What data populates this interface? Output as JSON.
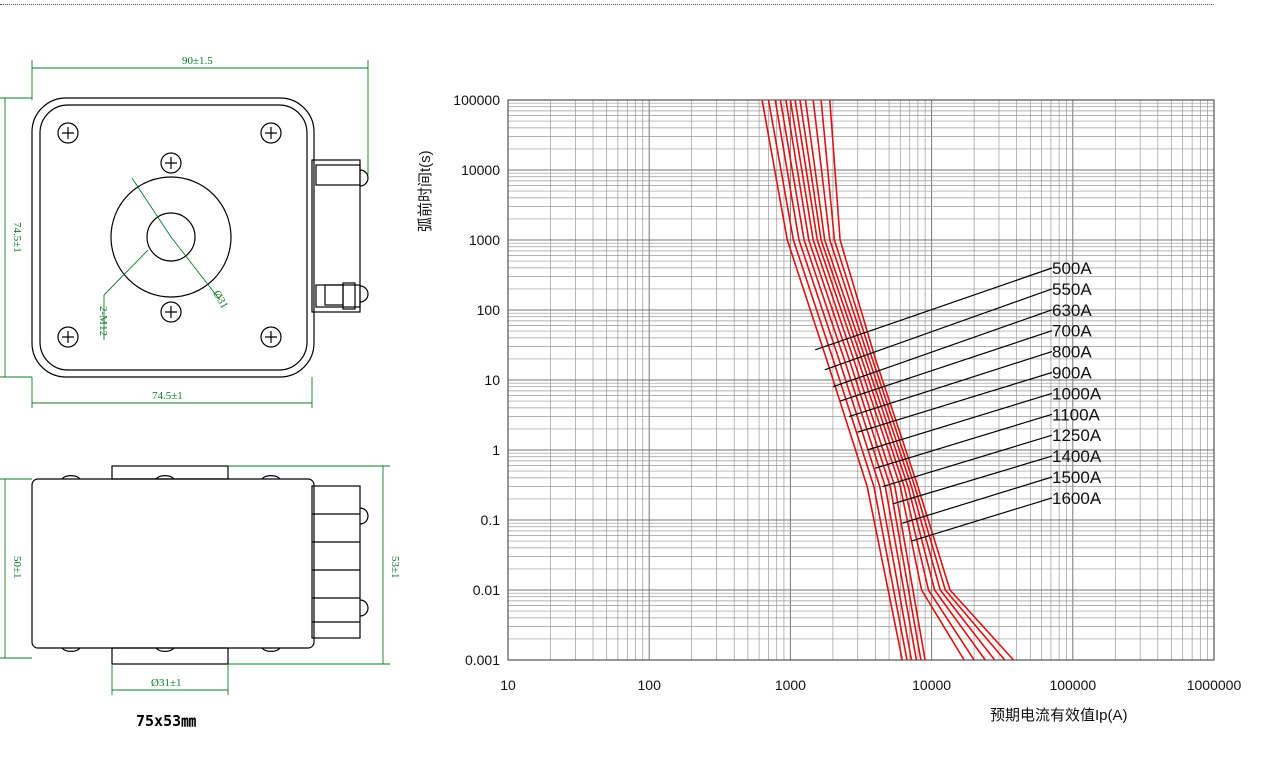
{
  "drawing": {
    "top_view": {
      "width_dim": "90±1.5",
      "height_dim": "74.5±1",
      "bottom_dim": "74.5±1",
      "thread_label": "2-M12",
      "hole_dim": "Ø31"
    },
    "side_view": {
      "height_dim_left": "50±1",
      "height_dim_right": "53±1",
      "bottom_dim": "Ø31±1"
    },
    "size_caption": "75x53㎜",
    "line_color": "#000000",
    "dim_color": "#0f7a2a"
  },
  "chart_data": {
    "type": "line",
    "x_scale": "log",
    "y_scale": "log",
    "xlim": [
      10,
      1000000
    ],
    "ylim": [
      0.001,
      100000
    ],
    "xlabel": "预期电流有效值Ip(A)",
    "ylabel": "弧前时间t(s)",
    "x_ticks": [
      "10",
      "100",
      "1000",
      "10000",
      "100000",
      "1000000"
    ],
    "y_ticks": [
      "100000",
      "10000",
      "1000",
      "100",
      "10",
      "1",
      "0.1",
      "0.01",
      "0.001"
    ],
    "grid": true,
    "curve_color": "#dd1111",
    "series": [
      {
        "name": "500A",
        "points": [
          [
            630,
            100000
          ],
          [
            950,
            1000
          ],
          [
            1800,
            20
          ],
          [
            3500,
            0.3
          ],
          [
            6200,
            0.001
          ]
        ]
      },
      {
        "name": "550A",
        "points": [
          [
            700,
            100000
          ],
          [
            1050,
            1000
          ],
          [
            2000,
            20
          ],
          [
            3900,
            0.3
          ],
          [
            6700,
            0.001
          ]
        ]
      },
      {
        "name": "630A",
        "points": [
          [
            780,
            100000
          ],
          [
            1150,
            1000
          ],
          [
            2200,
            20
          ],
          [
            4300,
            0.3
          ],
          [
            7200,
            0.001
          ]
        ]
      },
      {
        "name": "700A",
        "points": [
          [
            850,
            100000
          ],
          [
            1250,
            1000
          ],
          [
            2400,
            20
          ],
          [
            4700,
            0.3
          ],
          [
            7800,
            0.001
          ]
        ]
      },
      {
        "name": "800A",
        "points": [
          [
            930,
            100000
          ],
          [
            1350,
            1000
          ],
          [
            2600,
            20
          ],
          [
            5100,
            0.3
          ],
          [
            8400,
            0.001
          ]
        ]
      },
      {
        "name": "900A",
        "points": [
          [
            1000,
            100000
          ],
          [
            1450,
            1000
          ],
          [
            2800,
            20
          ],
          [
            5500,
            0.3
          ],
          [
            9000,
            0.001
          ]
        ]
      },
      {
        "name": "1000A",
        "points": [
          [
            1080,
            100000
          ],
          [
            1550,
            1000
          ],
          [
            3000,
            20
          ],
          [
            6000,
            0.3
          ],
          [
            8500,
            0.01
          ],
          [
            17000,
            0.001
          ]
        ]
      },
      {
        "name": "1100A",
        "points": [
          [
            1170,
            100000
          ],
          [
            1650,
            1000
          ],
          [
            3200,
            20
          ],
          [
            6400,
            0.3
          ],
          [
            9500,
            0.01
          ],
          [
            20000,
            0.001
          ]
        ]
      },
      {
        "name": "1250A",
        "points": [
          [
            1280,
            100000
          ],
          [
            1750,
            1000
          ],
          [
            3400,
            20
          ],
          [
            6800,
            0.3
          ],
          [
            10500,
            0.01
          ],
          [
            24000,
            0.001
          ]
        ]
      },
      {
        "name": "1400A",
        "points": [
          [
            1450,
            100000
          ],
          [
            1900,
            1000
          ],
          [
            3600,
            20
          ],
          [
            7200,
            0.3
          ],
          [
            11500,
            0.01
          ],
          [
            28000,
            0.001
          ]
        ]
      },
      {
        "name": "1500A",
        "points": [
          [
            1650,
            100000
          ],
          [
            2050,
            1000
          ],
          [
            3800,
            20
          ],
          [
            7600,
            0.3
          ],
          [
            12500,
            0.01
          ],
          [
            33000,
            0.001
          ]
        ]
      },
      {
        "name": "1600A",
        "points": [
          [
            1900,
            100000
          ],
          [
            2250,
            1000
          ],
          [
            4000,
            20
          ],
          [
            8000,
            0.3
          ],
          [
            13500,
            0.01
          ],
          [
            38000,
            0.001
          ]
        ]
      }
    ],
    "annotations": [
      {
        "label": "500A",
        "to": [
          1500,
          27
        ]
      },
      {
        "label": "550A",
        "to": [
          1750,
          14
        ]
      },
      {
        "label": "630A",
        "to": [
          2000,
          8
        ]
      },
      {
        "label": "700A",
        "to": [
          2250,
          5
        ]
      },
      {
        "label": "800A",
        "to": [
          2600,
          3
        ]
      },
      {
        "label": "900A",
        "to": [
          3000,
          1.8
        ]
      },
      {
        "label": "1000A",
        "to": [
          3500,
          1
        ]
      },
      {
        "label": "1100A",
        "to": [
          4000,
          0.55
        ]
      },
      {
        "label": "1250A",
        "to": [
          4500,
          0.3
        ]
      },
      {
        "label": "1400A",
        "to": [
          5300,
          0.17
        ]
      },
      {
        "label": "1500A",
        "to": [
          6200,
          0.09
        ]
      },
      {
        "label": "1600A",
        "to": [
          7200,
          0.05
        ]
      }
    ]
  }
}
